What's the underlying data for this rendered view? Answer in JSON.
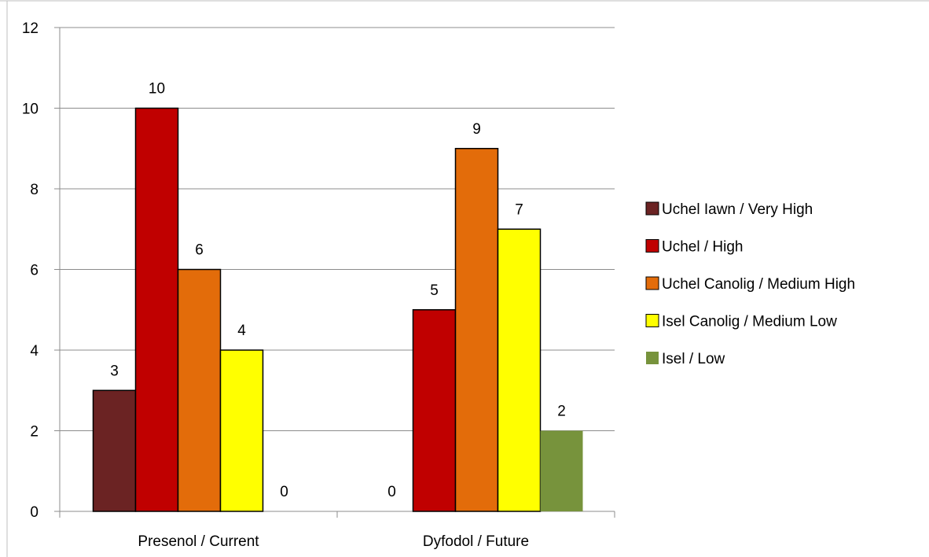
{
  "chart_data": {
    "type": "bar",
    "categories": [
      "Presenol / Current",
      "Dyfodol / Future"
    ],
    "series": [
      {
        "name": "Uchel Iawn / Very High",
        "color": "#6B2323",
        "values": [
          3,
          0
        ]
      },
      {
        "name": "Uchel / High",
        "color": "#C00000",
        "values": [
          10,
          5
        ]
      },
      {
        "name": "Uchel Canolig / Medium High",
        "color": "#E36C0A",
        "values": [
          6,
          9
        ]
      },
      {
        "name": "Isel Canolig / Medium Low",
        "color": "#FFFF00",
        "values": [
          4,
          7
        ]
      },
      {
        "name": "Isel / Low",
        "color": "#77933C",
        "values": [
          0,
          2
        ]
      }
    ],
    "ylim": [
      0,
      12
    ],
    "yticks": [
      0,
      2,
      4,
      6,
      8,
      10,
      12
    ],
    "grid": true,
    "legend_position": "right",
    "data_labels": true
  }
}
